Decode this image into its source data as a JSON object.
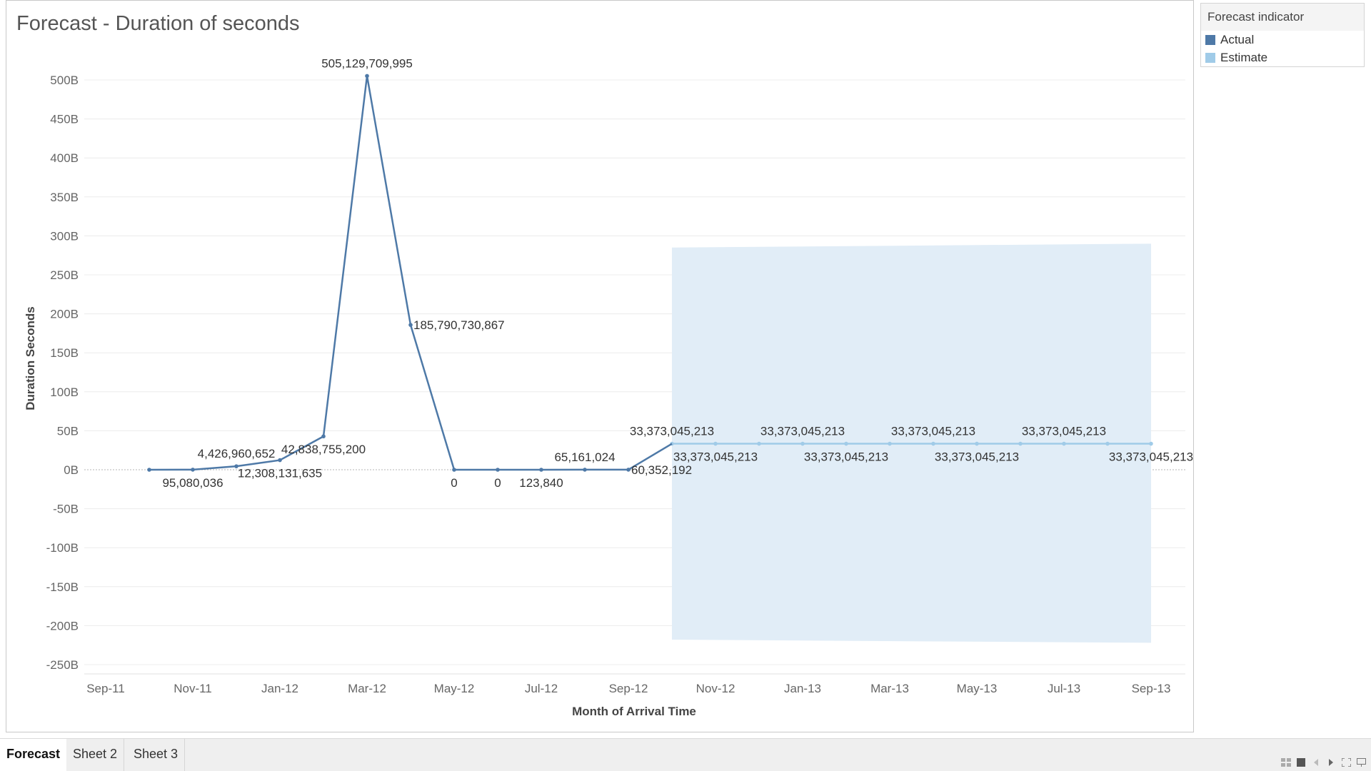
{
  "chart_data": {
    "type": "line",
    "title": "Forecast - Duration of seconds",
    "xlabel": "Month of Arrival Time",
    "ylabel": "Duration Seconds",
    "x_ticks": [
      "Sep-11",
      "Nov-11",
      "Jan-12",
      "Mar-12",
      "May-12",
      "Jul-12",
      "Sep-12",
      "Nov-12",
      "Jan-13",
      "Mar-13",
      "May-13",
      "Jul-13",
      "Sep-13"
    ],
    "y_ticks": [
      "500B",
      "450B",
      "400B",
      "350B",
      "300B",
      "250B",
      "200B",
      "150B",
      "100B",
      "50B",
      "0B",
      "-50B",
      "-100B",
      "-150B",
      "-200B",
      "-250B"
    ],
    "ylim": [
      -255000000000,
      515000000000
    ],
    "grid": true,
    "legend_position": "right",
    "series": [
      {
        "name": "Actual",
        "color": "#4e79a7",
        "points": [
          {
            "x": "Oct-11",
            "y": 0
          },
          {
            "x": "Nov-11",
            "y": 95080036
          },
          {
            "x": "Dec-11",
            "y": 4426960652
          },
          {
            "x": "Jan-12",
            "y": 12308131635
          },
          {
            "x": "Feb-12",
            "y": 42838755200
          },
          {
            "x": "Mar-12",
            "y": 505129709995
          },
          {
            "x": "Apr-12",
            "y": 185790730867
          },
          {
            "x": "May-12",
            "y": 0
          },
          {
            "x": "Jun-12",
            "y": 0
          },
          {
            "x": "Jul-12",
            "y": 123840
          },
          {
            "x": "Aug-12",
            "y": 65161024
          },
          {
            "x": "Sep-12",
            "y": 60352192
          }
        ]
      },
      {
        "name": "Estimate",
        "color": "#a0cbe8",
        "points": [
          {
            "x": "Oct-12",
            "y": 33373045213
          },
          {
            "x": "Nov-12",
            "y": 33373045213
          },
          {
            "x": "Dec-12",
            "y": 33373045213
          },
          {
            "x": "Jan-13",
            "y": 33373045213
          },
          {
            "x": "Feb-13",
            "y": 33373045213
          },
          {
            "x": "Mar-13",
            "y": 33373045213
          },
          {
            "x": "Apr-13",
            "y": 33373045213
          },
          {
            "x": "May-13",
            "y": 33373045213
          },
          {
            "x": "Jun-13",
            "y": 33373045213
          },
          {
            "x": "Jul-13",
            "y": 33373045213
          },
          {
            "x": "Aug-13",
            "y": 33373045213
          },
          {
            "x": "Sep-13",
            "y": 33373045213
          }
        ]
      }
    ],
    "prediction_band": {
      "color": "#e1edf7",
      "start": {
        "x": "Oct-12",
        "upper": 285000000000,
        "lower": -218000000000
      },
      "end": {
        "x": "Sep-13",
        "upper": 290000000000,
        "lower": -222000000000
      }
    },
    "data_labels": [
      {
        "x": "Nov-11",
        "text": "95,080,036",
        "pos": "below"
      },
      {
        "x": "Dec-11",
        "text": "4,426,960,652",
        "pos": "above"
      },
      {
        "x": "Jan-12",
        "text": "12,308,131,635",
        "pos": "below"
      },
      {
        "x": "Feb-12",
        "text": "42,838,755,200",
        "pos": "below"
      },
      {
        "x": "Mar-12",
        "text": "505,129,709,995",
        "pos": "above"
      },
      {
        "x": "Apr-12",
        "text": "185,790,730,867",
        "pos": "right"
      },
      {
        "x": "May-12",
        "text": "0",
        "pos": "below"
      },
      {
        "x": "Jun-12",
        "text": "0",
        "pos": "below"
      },
      {
        "x": "Jul-12",
        "text": "123,840",
        "pos": "below"
      },
      {
        "x": "Aug-12",
        "text": "65,161,024",
        "pos": "above"
      },
      {
        "x": "Sep-12",
        "text": "60,352,192",
        "pos": "right"
      },
      {
        "x": "Oct-12",
        "text": "33,373,045,213",
        "pos": "above"
      },
      {
        "x": "Nov-12",
        "text": "33,373,045,213",
        "pos": "below"
      },
      {
        "x": "Jan-13",
        "text": "33,373,045,213",
        "pos": "above"
      },
      {
        "x": "Feb-13",
        "text": "33,373,045,213",
        "pos": "below"
      },
      {
        "x": "Apr-13",
        "text": "33,373,045,213",
        "pos": "above"
      },
      {
        "x": "May-13",
        "text": "33,373,045,213",
        "pos": "below"
      },
      {
        "x": "Jul-13",
        "text": "33,373,045,213",
        "pos": "above"
      },
      {
        "x": "Sep-13",
        "text": "33,373,045,213",
        "pos": "below"
      }
    ]
  },
  "legend": {
    "title": "Forecast indicator",
    "items": [
      {
        "label": "Actual",
        "color": "#4e79a7"
      },
      {
        "label": "Estimate",
        "color": "#a0cbe8"
      }
    ]
  },
  "tabs": [
    {
      "label": "Forecast",
      "active": true
    },
    {
      "label": "Sheet 2",
      "active": false
    },
    {
      "label": "Sheet 3",
      "active": false
    }
  ],
  "tab_controls": [
    "grid-view-icon",
    "single-view-icon",
    "prev-icon",
    "next-icon",
    "fullscreen-icon",
    "present-icon"
  ]
}
